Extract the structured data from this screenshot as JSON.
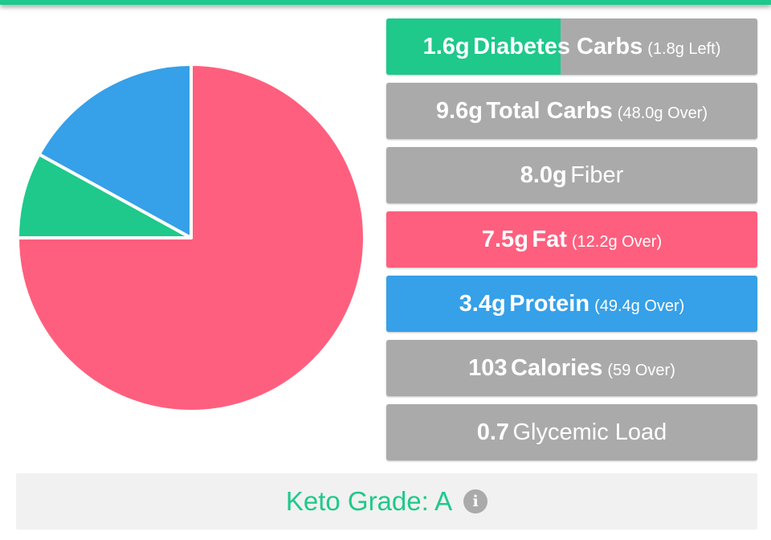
{
  "colors": {
    "brand_green": "#1ec98b",
    "carb_gray": "#aaaaaa",
    "fat_pink": "#ff5f7e",
    "protein_blue": "#36a0e8"
  },
  "chart_data": {
    "type": "pie",
    "slices": [
      {
        "value": 75.0,
        "color": "#ff5f7e"
      },
      {
        "value": 8.0,
        "color": "#1ec98b"
      },
      {
        "value": 17.0,
        "color": "#36a0e8"
      }
    ]
  },
  "stats": [
    {
      "num": "1.6g",
      "label": "Diabetes Carbs",
      "label_bold": true,
      "sub": "(1.8g Left)",
      "bg": "#aaaaaa",
      "fill_color": "#1ec98b",
      "fill_fraction": 0.47
    },
    {
      "num": "9.6g",
      "label": "Total Carbs",
      "label_bold": true,
      "sub": "(48.0g Over)",
      "bg": "#aaaaaa"
    },
    {
      "num": "8.0g",
      "label": "Fiber",
      "label_bold": false,
      "sub": "",
      "bg": "#aaaaaa"
    },
    {
      "num": "7.5g",
      "label": "Fat",
      "label_bold": true,
      "sub": "(12.2g Over)",
      "bg": "#ff5f7e"
    },
    {
      "num": "3.4g",
      "label": "Protein",
      "label_bold": true,
      "sub": "(49.4g Over)",
      "bg": "#36a0e8"
    },
    {
      "num": "103",
      "label": "Calories",
      "label_bold": true,
      "sub": "(59 Over)",
      "bg": "#aaaaaa"
    },
    {
      "num": "0.7",
      "label": "Glycemic Load",
      "label_bold": false,
      "sub": "",
      "bg": "#aaaaaa"
    }
  ],
  "grade": {
    "label": "Keto Grade: A",
    "info_icon": "info-icon",
    "info_glyph": "i",
    "color": "#1ec98b"
  }
}
